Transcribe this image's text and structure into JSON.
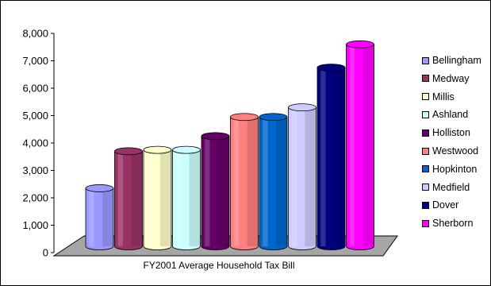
{
  "chart_data": {
    "type": "bar",
    "title": "",
    "xlabel": "FY2001 Average Household Tax Bill",
    "ylabel": "",
    "ylim": [
      0,
      8000
    ],
    "yticks": [
      "0",
      "1,000",
      "2,000",
      "3,000",
      "4,000",
      "5,000",
      "6,000",
      "7,000",
      "8,000"
    ],
    "grid": false,
    "legend_position": "right",
    "categories": [
      "Bellingham",
      "Medway",
      "Millis",
      "Ashland",
      "Holliston",
      "Westwood",
      "Hopkinton",
      "Medfield",
      "Dover",
      "Sherborn"
    ],
    "values": [
      2350,
      3700,
      3750,
      3750,
      4250,
      4950,
      4950,
      5300,
      6750,
      7600
    ],
    "colors": [
      "#9999ff",
      "#993366",
      "#ffffcc",
      "#ccffff",
      "#660066",
      "#ff8080",
      "#0066cc",
      "#ccccff",
      "#000080",
      "#ff00ff"
    ]
  }
}
